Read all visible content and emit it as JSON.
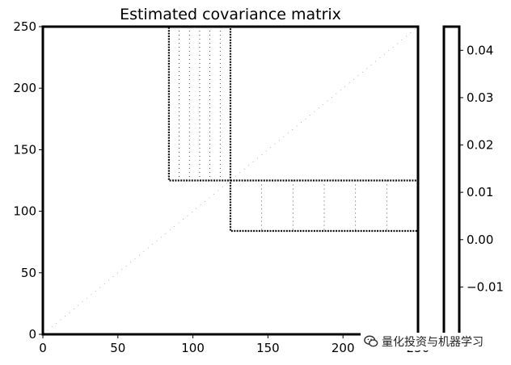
{
  "chart_data": {
    "type": "heatmap",
    "title": "Estimated covariance matrix",
    "xlim": [
      0,
      250
    ],
    "ylim": [
      0,
      250
    ],
    "x_ticks": [
      0,
      50,
      100,
      150,
      200,
      250
    ],
    "y_ticks": [
      0,
      50,
      100,
      150,
      200,
      250
    ],
    "colorbar": {
      "range": [
        -0.02,
        0.045
      ],
      "ticks": [
        0.04,
        0.03,
        0.02,
        0.01,
        0.0,
        -0.01
      ],
      "tick_labels": [
        "0.04",
        "0.03",
        "0.02",
        "0.01",
        "0.00",
        "−0.01"
      ]
    },
    "blocks": [
      {
        "x": [
          84,
          125
        ],
        "y": [
          125,
          250
        ]
      },
      {
        "x": [
          125,
          250
        ],
        "y": [
          84,
          125
        ]
      }
    ],
    "grid": false
  },
  "watermark": {
    "icon": "wechat-icon",
    "text": "量化投资与机器学习"
  }
}
